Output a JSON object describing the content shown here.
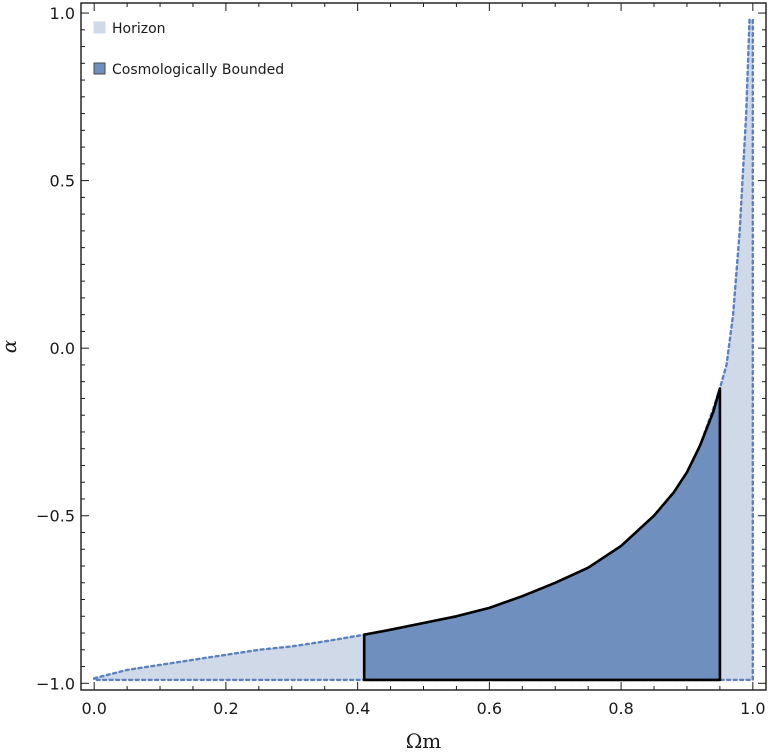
{
  "chart_data": {
    "type": "area",
    "xlabel": "Ωm",
    "ylabel": "α",
    "xlim": [
      -0.02,
      1.02
    ],
    "ylim": [
      -1.02,
      1.03
    ],
    "x_ticks": [
      0.0,
      0.2,
      0.4,
      0.6,
      0.8,
      1.0
    ],
    "x_tick_labels": [
      "0.0",
      "0.2",
      "0.4",
      "0.6",
      "0.8",
      "1.0"
    ],
    "y_ticks": [
      -1.0,
      -0.5,
      0.0,
      0.5,
      1.0
    ],
    "y_tick_labels": [
      "−1.0",
      "−0.5",
      "0.0",
      "0.5",
      "1.0"
    ],
    "legend_position": "top-left",
    "grid": false,
    "series": [
      {
        "name": "Horizon",
        "fill": "#cfd9e7",
        "stroke": "#5b82bf",
        "dashed": true,
        "boundary": [
          [
            0.0,
            -0.985
          ],
          [
            0.05,
            -0.96
          ],
          [
            0.1,
            -0.945
          ],
          [
            0.15,
            -0.93
          ],
          [
            0.2,
            -0.915
          ],
          [
            0.25,
            -0.9
          ],
          [
            0.3,
            -0.89
          ],
          [
            0.35,
            -0.875
          ],
          [
            0.41,
            -0.855
          ],
          [
            0.45,
            -0.84
          ],
          [
            0.5,
            -0.82
          ],
          [
            0.55,
            -0.8
          ],
          [
            0.6,
            -0.775
          ],
          [
            0.65,
            -0.74
          ],
          [
            0.7,
            -0.7
          ],
          [
            0.75,
            -0.655
          ],
          [
            0.8,
            -0.59
          ],
          [
            0.85,
            -0.5
          ],
          [
            0.88,
            -0.43
          ],
          [
            0.9,
            -0.37
          ],
          [
            0.92,
            -0.29
          ],
          [
            0.94,
            -0.18
          ],
          [
            0.95,
            -0.12
          ],
          [
            0.96,
            -0.05
          ],
          [
            0.97,
            0.1
          ],
          [
            0.98,
            0.35
          ],
          [
            0.99,
            0.7
          ],
          [
            0.995,
            0.98
          ],
          [
            1.0,
            0.98
          ],
          [
            1.0,
            -0.99
          ],
          [
            0.0,
            -0.99
          ]
        ]
      },
      {
        "name": "Cosmologically Bounded",
        "fill": "#6f8fbe",
        "stroke": "#000000",
        "dashed": false,
        "boundary": [
          [
            0.41,
            -0.855
          ],
          [
            0.45,
            -0.84
          ],
          [
            0.5,
            -0.82
          ],
          [
            0.55,
            -0.8
          ],
          [
            0.6,
            -0.775
          ],
          [
            0.65,
            -0.74
          ],
          [
            0.7,
            -0.7
          ],
          [
            0.75,
            -0.655
          ],
          [
            0.8,
            -0.59
          ],
          [
            0.85,
            -0.5
          ],
          [
            0.88,
            -0.43
          ],
          [
            0.9,
            -0.37
          ],
          [
            0.92,
            -0.29
          ],
          [
            0.94,
            -0.19
          ],
          [
            0.95,
            -0.12
          ],
          [
            0.95,
            -0.99
          ],
          [
            0.41,
            -0.99
          ]
        ]
      }
    ]
  }
}
